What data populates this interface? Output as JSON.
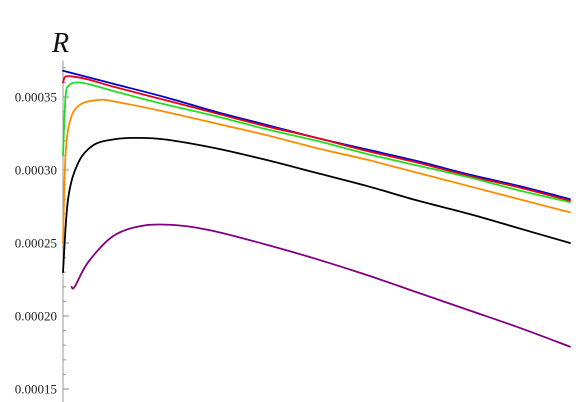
{
  "chart_data": {
    "type": "line",
    "title": "",
    "xlabel": "",
    "ylabel": "R",
    "ylim": [
      0.00015,
      0.000375
    ],
    "xlim": [
      0,
      1
    ],
    "y_ticks": [
      0.00015,
      0.0002,
      0.00025,
      0.0003,
      0.00035
    ],
    "y_tick_labels": [
      "0.00015",
      "0.00020",
      "0.00025",
      "0.00030",
      "0.00035"
    ],
    "grid": false,
    "series": [
      {
        "color": "#0000cc",
        "points": [
          [
            0.0,
            0.000368
          ],
          [
            0.1,
            0.000359
          ],
          [
            0.2,
            0.00035
          ],
          [
            0.3,
            0.00034
          ],
          [
            0.4,
            0.000331
          ],
          [
            0.5,
            0.000322
          ],
          [
            0.6,
            0.000314
          ],
          [
            0.7,
            0.000306
          ],
          [
            0.8,
            0.000297
          ],
          [
            0.9,
            0.000289
          ],
          [
            1.0,
            0.00028
          ]
        ]
      },
      {
        "color": "#e6001a",
        "points": [
          [
            0.0,
            0.00036
          ],
          [
            0.005,
            0.000364
          ],
          [
            0.02,
            0.000364
          ],
          [
            0.05,
            0.000362
          ],
          [
            0.1,
            0.000357
          ],
          [
            0.2,
            0.000348
          ],
          [
            0.3,
            0.000339
          ],
          [
            0.4,
            0.00033
          ],
          [
            0.5,
            0.000322
          ],
          [
            0.6,
            0.000313
          ],
          [
            0.7,
            0.000305
          ],
          [
            0.8,
            0.000296
          ],
          [
            0.9,
            0.000288
          ],
          [
            1.0,
            0.000279
          ]
        ]
      },
      {
        "color": "#22dd22",
        "points": [
          [
            0.0,
            0.00031
          ],
          [
            0.005,
            0.00035
          ],
          [
            0.012,
            0.000358
          ],
          [
            0.03,
            0.00036
          ],
          [
            0.06,
            0.000358
          ],
          [
            0.1,
            0.000354
          ],
          [
            0.2,
            0.000345
          ],
          [
            0.3,
            0.000337
          ],
          [
            0.4,
            0.000328
          ],
          [
            0.5,
            0.00032
          ],
          [
            0.6,
            0.000311
          ],
          [
            0.7,
            0.000303
          ],
          [
            0.8,
            0.000295
          ],
          [
            0.9,
            0.000286
          ],
          [
            1.0,
            0.000278
          ]
        ]
      },
      {
        "color": "#ff8c00",
        "points": [
          [
            0.0,
            0.00025
          ],
          [
            0.005,
            0.00031
          ],
          [
            0.015,
            0.000335
          ],
          [
            0.035,
            0.000345
          ],
          [
            0.07,
            0.000348
          ],
          [
            0.1,
            0.000347
          ],
          [
            0.2,
            0.00034
          ],
          [
            0.3,
            0.000332
          ],
          [
            0.4,
            0.000324
          ],
          [
            0.5,
            0.000315
          ],
          [
            0.6,
            0.000307
          ],
          [
            0.7,
            0.000298
          ],
          [
            0.8,
            0.000289
          ],
          [
            0.9,
            0.00028
          ],
          [
            1.0,
            0.000271
          ]
        ]
      },
      {
        "color": "#000000",
        "points": [
          [
            0.0,
            0.00023
          ],
          [
            0.01,
            0.00028
          ],
          [
            0.03,
            0.000305
          ],
          [
            0.06,
            0.000317
          ],
          [
            0.1,
            0.000321
          ],
          [
            0.14,
            0.000322
          ],
          [
            0.2,
            0.000321
          ],
          [
            0.3,
            0.000315
          ],
          [
            0.4,
            0.000307
          ],
          [
            0.5,
            0.000298
          ],
          [
            0.6,
            0.000289
          ],
          [
            0.7,
            0.000279
          ],
          [
            0.8,
            0.00027
          ],
          [
            0.9,
            0.00026
          ],
          [
            1.0,
            0.00025
          ]
        ]
      },
      {
        "color": "#800080",
        "points": [
          [
            0.017,
            0.00022
          ],
          [
            0.023,
            0.00022
          ],
          [
            0.05,
            0.000237
          ],
          [
            0.1,
            0.000255
          ],
          [
            0.16,
            0.000262
          ],
          [
            0.23,
            0.000262
          ],
          [
            0.3,
            0.000258
          ],
          [
            0.4,
            0.000249
          ],
          [
            0.5,
            0.000239
          ],
          [
            0.6,
            0.000228
          ],
          [
            0.7,
            0.000216
          ],
          [
            0.8,
            0.000204
          ],
          [
            0.9,
            0.000192
          ],
          [
            1.0,
            0.000179
          ]
        ]
      }
    ]
  }
}
